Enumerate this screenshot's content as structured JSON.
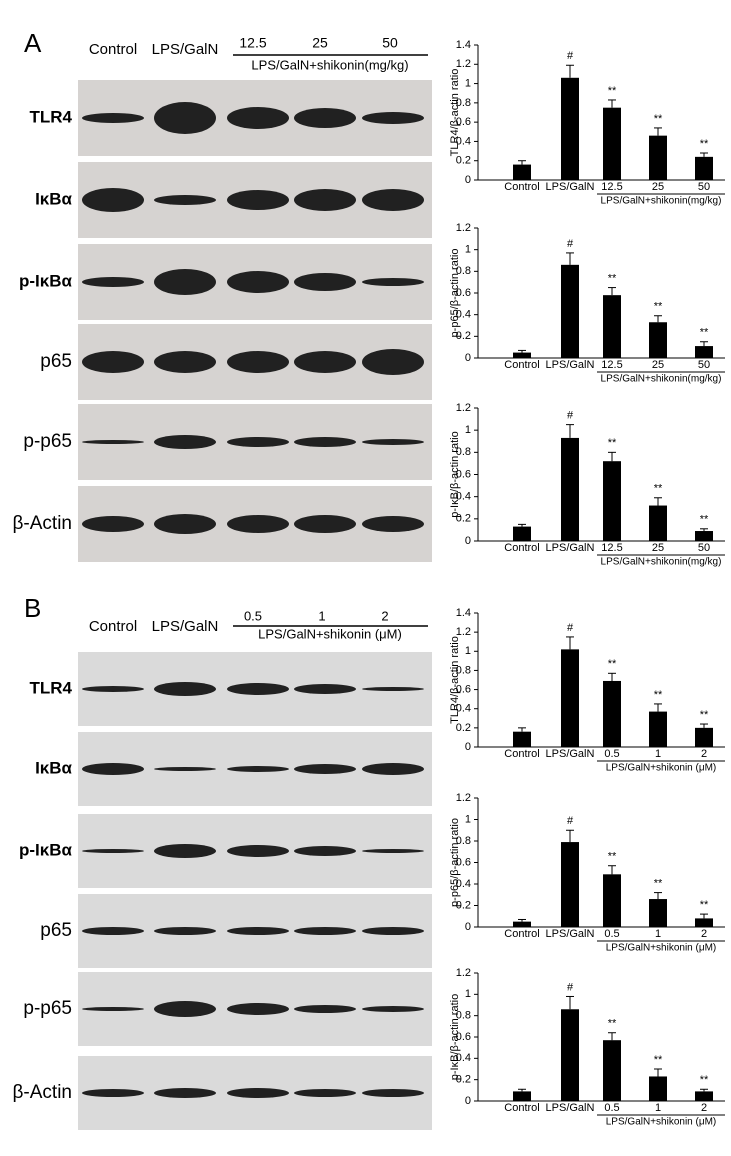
{
  "panels": [
    {
      "label": "A",
      "lanes": [
        "Control",
        "LPS/GalN"
      ],
      "doses": [
        "12.5",
        "25",
        "50"
      ],
      "dose_caption": "LPS/GalN+shikonin(mg/kg)",
      "blots": [
        "TLR4",
        "IκBα",
        "p-IκBα",
        "p65",
        "p-p65",
        "β-Actin"
      ]
    },
    {
      "label": "B",
      "lanes": [
        "Control",
        "LPS/GalN"
      ],
      "doses": [
        "0.5",
        "1",
        "2"
      ],
      "dose_caption": "LPS/GalN+shikonin (μM)",
      "blots": [
        "TLR4",
        "IκBα",
        "p-IκBα",
        "p65",
        "p-p65",
        "β-Actin"
      ]
    }
  ],
  "chart_data": [
    {
      "type": "bar",
      "y_label": "TLR4/β-actin ratio",
      "categories": [
        "Control",
        "LPS/GalN",
        "12.5",
        "25",
        "50"
      ],
      "group_caption": "LPS/GalN+shikonin(mg/kg)",
      "values": [
        0.16,
        1.06,
        0.75,
        0.46,
        0.24
      ],
      "errors": [
        0.04,
        0.13,
        0.08,
        0.08,
        0.04
      ],
      "annotations": [
        null,
        "#",
        "**",
        "**",
        "**"
      ],
      "color": "#000000",
      "ylim": [
        0,
        1.4
      ],
      "yticks": [
        0,
        0.2,
        0.4,
        0.6,
        0.8,
        1,
        1.2,
        1.4
      ]
    },
    {
      "type": "bar",
      "y_label": "p-p65/β-actin ratio",
      "categories": [
        "Control",
        "LPS/GalN",
        "12.5",
        "25",
        "50"
      ],
      "group_caption": "LPS/GalN+shikonin(mg/kg)",
      "values": [
        0.05,
        0.86,
        0.58,
        0.33,
        0.11
      ],
      "errors": [
        0.02,
        0.11,
        0.07,
        0.06,
        0.04
      ],
      "annotations": [
        null,
        "#",
        "**",
        "**",
        "**"
      ],
      "color": "#000000",
      "ylim": [
        0,
        1.2
      ],
      "yticks": [
        0,
        0.2,
        0.4,
        0.6,
        0.8,
        1,
        1.2
      ]
    },
    {
      "type": "bar",
      "y_label": "p-IκB/β-actin ratio",
      "categories": [
        "Control",
        "LPS/GalN",
        "12.5",
        "25",
        "50"
      ],
      "group_caption": "LPS/GalN+shikonin(mg/kg)",
      "values": [
        0.13,
        0.93,
        0.72,
        0.32,
        0.09
      ],
      "errors": [
        0.02,
        0.12,
        0.08,
        0.07,
        0.02
      ],
      "annotations": [
        null,
        "#",
        "**",
        "**",
        "**"
      ],
      "color": "#000000",
      "ylim": [
        0,
        1.2
      ],
      "yticks": [
        0,
        0.2,
        0.4,
        0.6,
        0.8,
        1,
        1.2
      ]
    },
    {
      "type": "bar",
      "y_label": "TLR4/β-actin ratio",
      "categories": [
        "Control",
        "LPS/GalN",
        "0.5",
        "1",
        "2"
      ],
      "group_caption": "LPS/GalN+shikonin (μM)",
      "values": [
        0.16,
        1.02,
        0.69,
        0.37,
        0.2
      ],
      "errors": [
        0.04,
        0.13,
        0.08,
        0.08,
        0.04
      ],
      "annotations": [
        null,
        "#",
        "**",
        "**",
        "**"
      ],
      "color": "#000000",
      "ylim": [
        0,
        1.4
      ],
      "yticks": [
        0,
        0.2,
        0.4,
        0.6,
        0.8,
        1,
        1.2,
        1.4
      ]
    },
    {
      "type": "bar",
      "y_label": "p-p65/β-actin ratio",
      "categories": [
        "Control",
        "LPS/GalN",
        "0.5",
        "1",
        "2"
      ],
      "group_caption": "LPS/GalN+shikonin (μM)",
      "values": [
        0.05,
        0.79,
        0.49,
        0.26,
        0.08
      ],
      "errors": [
        0.02,
        0.11,
        0.08,
        0.06,
        0.04
      ],
      "annotations": [
        null,
        "#",
        "**",
        "**",
        "**"
      ],
      "color": "#000000",
      "ylim": [
        0,
        1.2
      ],
      "yticks": [
        0,
        0.2,
        0.4,
        0.6,
        0.8,
        1,
        1.2
      ]
    },
    {
      "type": "bar",
      "y_label": "p-IκB/β-actin ratio",
      "categories": [
        "Control",
        "LPS/GalN",
        "0.5",
        "1",
        "2"
      ],
      "group_caption": "LPS/GalN+shikonin (μM)",
      "values": [
        0.09,
        0.86,
        0.57,
        0.23,
        0.09
      ],
      "errors": [
        0.02,
        0.12,
        0.07,
        0.07,
        0.02
      ],
      "annotations": [
        null,
        "#",
        "**",
        "**",
        "**"
      ],
      "color": "#000000",
      "ylim": [
        0,
        1.2
      ],
      "yticks": [
        0,
        0.2,
        0.4,
        0.6,
        0.8,
        1,
        1.2
      ]
    }
  ]
}
